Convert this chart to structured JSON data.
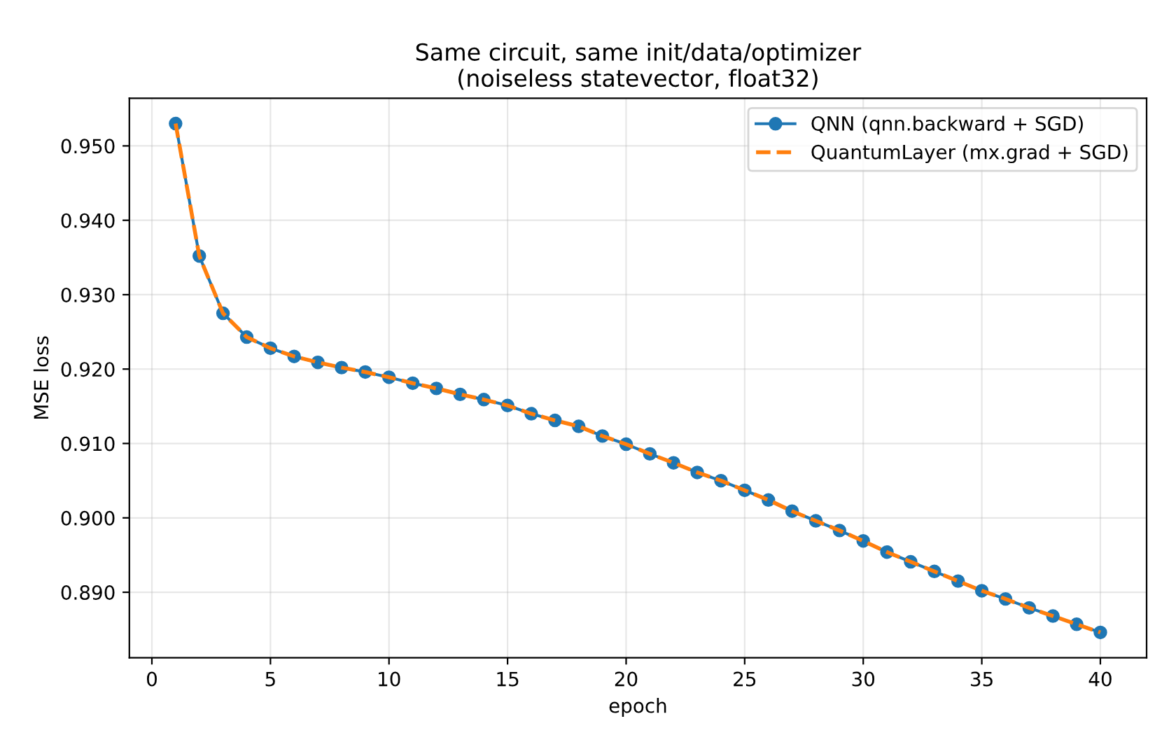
{
  "chart_data": {
    "type": "line",
    "title": "Same circuit, same init/data/optimizer\n(noiseless statevector, float32)",
    "xlabel": "epoch",
    "ylabel": "MSE loss",
    "x": [
      1,
      2,
      3,
      4,
      5,
      6,
      7,
      8,
      9,
      10,
      11,
      12,
      13,
      14,
      15,
      16,
      17,
      18,
      19,
      20,
      21,
      22,
      23,
      24,
      25,
      26,
      27,
      28,
      29,
      30,
      31,
      32,
      33,
      34,
      35,
      36,
      37,
      38,
      39,
      40
    ],
    "series": [
      {
        "name": "QNN (qnn.backward + SGD)",
        "color": "#1f77b4",
        "marker": "circle",
        "line_style": "solid",
        "values": [
          0.953,
          0.9352,
          0.9275,
          0.9243,
          0.9228,
          0.9217,
          0.9209,
          0.9202,
          0.9196,
          0.9189,
          0.9181,
          0.9174,
          0.9166,
          0.9159,
          0.9151,
          0.914,
          0.9131,
          0.9123,
          0.911,
          0.9099,
          0.9086,
          0.9074,
          0.9061,
          0.905,
          0.9037,
          0.9024,
          0.9009,
          0.8996,
          0.8983,
          0.8969,
          0.8954,
          0.8941,
          0.8928,
          0.8915,
          0.8902,
          0.8891,
          0.8879,
          0.8868,
          0.8857,
          0.8846
        ]
      },
      {
        "name": "QuantumLayer (mx.grad + SGD)",
        "color": "#ff7f0e",
        "marker": "none",
        "line_style": "dashed",
        "values": [
          0.953,
          0.9352,
          0.9275,
          0.9243,
          0.9228,
          0.9217,
          0.9209,
          0.9202,
          0.9196,
          0.9189,
          0.9181,
          0.9174,
          0.9166,
          0.9159,
          0.9151,
          0.914,
          0.9131,
          0.9123,
          0.911,
          0.9099,
          0.9086,
          0.9074,
          0.9061,
          0.905,
          0.9037,
          0.9024,
          0.9009,
          0.8996,
          0.8983,
          0.8969,
          0.8954,
          0.8941,
          0.8928,
          0.8915,
          0.8902,
          0.8891,
          0.8879,
          0.8868,
          0.8857,
          0.8846
        ]
      }
    ],
    "xlim": [
      -0.95,
      41.95
    ],
    "xticks": [
      0,
      5,
      10,
      15,
      20,
      25,
      30,
      35,
      40
    ],
    "ylim": [
      0.8812,
      0.9564
    ],
    "yticks": [
      {
        "value": 0.89,
        "label": "0.890"
      },
      {
        "value": 0.9,
        "label": "0.900"
      },
      {
        "value": 0.91,
        "label": "0.910"
      },
      {
        "value": 0.92,
        "label": "0.920"
      },
      {
        "value": 0.93,
        "label": "0.930"
      },
      {
        "value": 0.94,
        "label": "0.940"
      },
      {
        "value": 0.95,
        "label": "0.950"
      }
    ],
    "grid": true,
    "legend": "top right"
  }
}
